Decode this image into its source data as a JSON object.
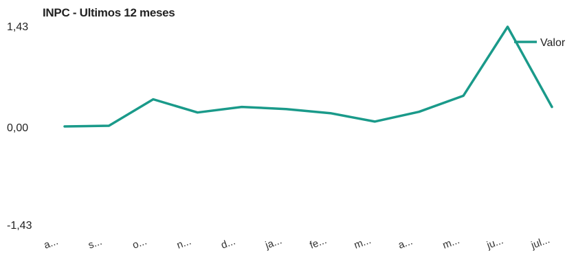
{
  "chart_data": {
    "type": "line",
    "title": "INPC - Ultimos 12 meses",
    "categories": [
      "a...",
      "s...",
      "o...",
      "n...",
      "d...",
      "ja...",
      "fe...",
      "m...",
      "a...",
      "m...",
      "ju...",
      "jul..."
    ],
    "series": [
      {
        "name": "Valor",
        "values": [
          0.0,
          0.01,
          0.39,
          0.2,
          0.28,
          0.25,
          0.19,
          0.07,
          0.21,
          0.44,
          1.43,
          0.28
        ]
      }
    ],
    "y_ticks": [
      "1,43",
      "0,00",
      "-1,43"
    ],
    "ylim": [
      -1.43,
      1.43
    ],
    "xlabel": "",
    "ylabel": "",
    "grid": false,
    "legend_position": "top-right",
    "colors": {
      "series": "#1a9a8a",
      "text": "#222222",
      "background": "#ffffff"
    }
  }
}
